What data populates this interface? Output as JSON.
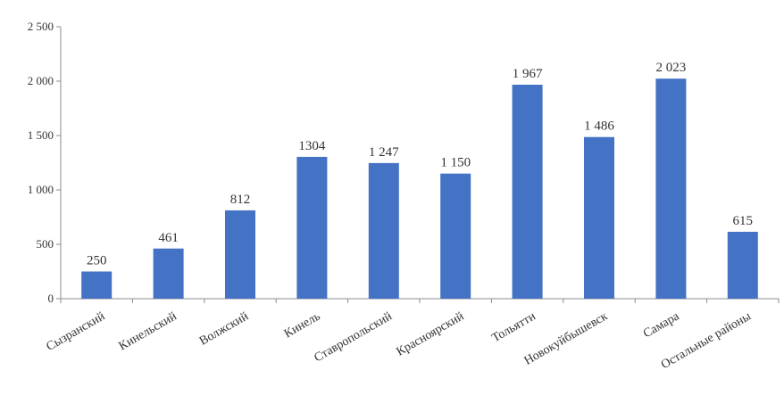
{
  "chart_data": {
    "type": "bar",
    "categories": [
      "Сызранский",
      "Кинельский",
      "Волжский",
      "Кинель",
      "Ставропольский",
      "Красноярский",
      "Тольятти",
      "Новокуйбышевск",
      "Самара",
      "Остальные районы"
    ],
    "values": [
      250,
      461,
      812,
      1304,
      1247,
      1150,
      1967,
      1486,
      2023,
      615
    ],
    "data_labels": [
      "250",
      "461",
      "812",
      "1304",
      "1 247",
      "1 150",
      "1 967",
      "1 486",
      "2 023",
      "615"
    ],
    "yticks": [
      "0",
      "500",
      "1 000",
      "1 500",
      "2 000",
      "2 500"
    ],
    "ytick_values": [
      0,
      500,
      1000,
      1500,
      2000,
      2500
    ],
    "ylim": [
      0,
      2500
    ],
    "grid": false,
    "legend": "none",
    "colors": {
      "bar": "#4472c4",
      "axis": "#8c8c8c"
    }
  }
}
